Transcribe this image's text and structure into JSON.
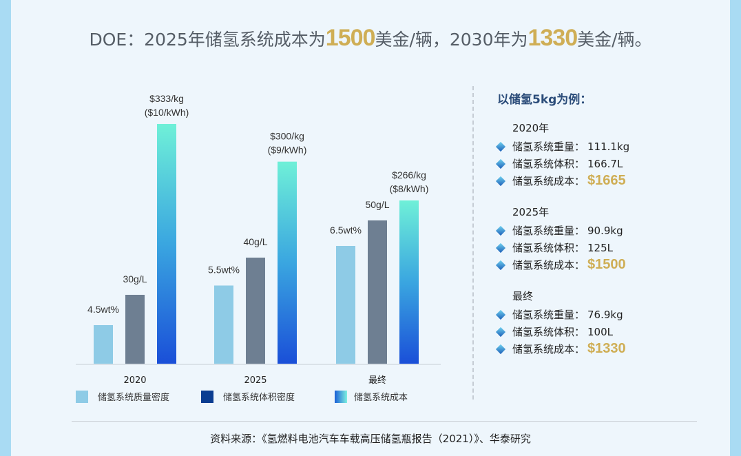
{
  "title": {
    "p1": "DOE：2025年储氢系统成本为",
    "h1": "1500",
    "p2": "美金/辆，2030年为",
    "h2": "1330",
    "p3": "美金/辆。"
  },
  "chart_data": {
    "type": "bar",
    "categories": [
      "2020",
      "2025",
      "最终"
    ],
    "series": [
      {
        "name": "储氢系统质量密度",
        "unit": "wt%",
        "values": [
          4.5,
          5.5,
          6.5
        ],
        "labels": [
          "4.5wt%",
          "5.5wt%",
          "6.5wt%"
        ],
        "color": "#8ecbe6"
      },
      {
        "name": "储氢系统体积密度",
        "unit": "g/L",
        "values": [
          30,
          40,
          50
        ],
        "labels": [
          "30g/L",
          "40g/L",
          "50g/L"
        ],
        "color": "#6e7f92"
      },
      {
        "name": "储氢系统成本",
        "unit": "$/kg",
        "values": [
          333,
          300,
          266
        ],
        "labels": [
          "$333/kg",
          "$300/kg",
          "$266/kg"
        ],
        "sublabels": [
          "($10/kWh)",
          "($9/kWh)",
          "($8/kWh)"
        ],
        "color": "#1a5fd6"
      }
    ],
    "legend": "bottom"
  },
  "right": {
    "head": "以储氢5kg为例：",
    "groups": [
      {
        "year": "2020年",
        "rows": [
          {
            "k": "储氢系统重量：",
            "v": "111.1kg"
          },
          {
            "k": "储氢系统体积：",
            "v": "166.7L"
          },
          {
            "k": "储氢系统成本：",
            "v": "$1665"
          }
        ]
      },
      {
        "year": "2025年",
        "rows": [
          {
            "k": "储氢系统重量：",
            "v": "90.9kg"
          },
          {
            "k": "储氢系统体积：",
            "v": "125L"
          },
          {
            "k": "储氢系统成本：",
            "v": "$1500"
          }
        ]
      },
      {
        "year": "最终",
        "rows": [
          {
            "k": "储氢系统重量：",
            "v": "76.9kg"
          },
          {
            "k": "储氢系统体积：",
            "v": "100L"
          },
          {
            "k": "储氢系统成本：",
            "v": "$1330"
          }
        ]
      }
    ]
  },
  "source": "资料来源：《氢燃料电池汽车车载高压储氢瓶报告（2021）》、华泰研究"
}
